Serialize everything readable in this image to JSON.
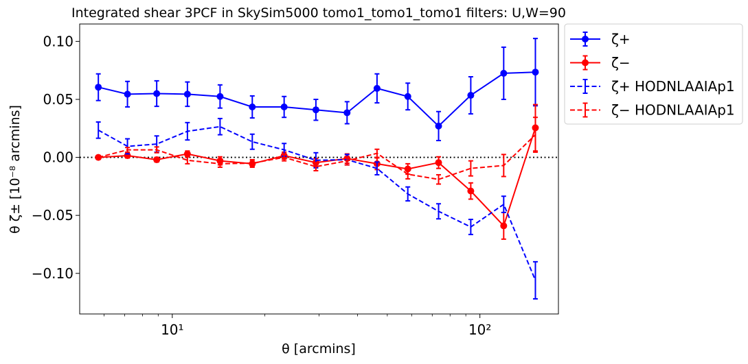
{
  "chart_data": {
    "type": "line",
    "title": "Integrated shear 3PCF in SkySim5000 tomo1_tomo1_tomo1 filters: U,W=90",
    "xlabel": "θ [arcmins]",
    "ylabel": "θ ζ± [10⁻⁸ arcmins]",
    "xscale": "log",
    "xlim": [
      5.0,
      180.0
    ],
    "ylim": [
      -0.135,
      0.115
    ],
    "xticks": [
      {
        "value": 10,
        "label": "10¹"
      },
      {
        "value": 100,
        "label": "10²"
      }
    ],
    "yticks": [
      {
        "value": 0.1,
        "label": "0.10"
      },
      {
        "value": 0.05,
        "label": "0.05"
      },
      {
        "value": 0.0,
        "label": "0.00"
      },
      {
        "value": -0.05,
        "label": "−0.05"
      },
      {
        "value": -0.1,
        "label": "−0.10"
      }
    ],
    "zero_line": true,
    "grid": false,
    "legend_position": "outside right, top",
    "x": [
      5.75,
      7.15,
      8.9,
      11.2,
      14.3,
      18.2,
      23.1,
      29.3,
      37.0,
      46.3,
      58.3,
      73.4,
      93.4,
      119.5,
      151.5
    ],
    "series": [
      {
        "name": "ζ+",
        "color": "#0000ff",
        "style": "solid",
        "marker": true,
        "values": [
          0.0605,
          0.0545,
          0.055,
          0.0545,
          0.0525,
          0.0435,
          0.0435,
          0.041,
          0.0385,
          0.0595,
          0.0525,
          0.027,
          0.0535,
          0.0725,
          0.0735
        ],
        "errors": [
          0.0115,
          0.011,
          0.011,
          0.0105,
          0.01,
          0.0095,
          0.009,
          0.009,
          0.0095,
          0.0125,
          0.0115,
          0.0125,
          0.016,
          0.0225,
          0.029
        ]
      },
      {
        "name": "ζ−",
        "color": "#ff0000",
        "style": "solid",
        "marker": true,
        "values": [
          0.0,
          0.0015,
          -0.002,
          0.003,
          -0.003,
          -0.0055,
          0.0015,
          -0.0045,
          -0.001,
          -0.0055,
          -0.01,
          -0.0045,
          -0.029,
          -0.059,
          0.0255
        ],
        "errors": [
          0.0015,
          0.002,
          0.002,
          0.0025,
          0.0035,
          0.003,
          0.003,
          0.0035,
          0.004,
          0.005,
          0.0045,
          0.005,
          0.007,
          0.0115,
          0.02
        ]
      },
      {
        "name": "ζ+ HODNLAAIAp1",
        "color": "#0000ff",
        "style": "dashed",
        "marker": false,
        "values": [
          0.0235,
          0.0095,
          0.0115,
          0.0225,
          0.0265,
          0.0135,
          0.0065,
          -0.0025,
          -0.002,
          -0.0095,
          -0.0315,
          -0.0465,
          -0.06,
          -0.0405,
          -0.106
        ],
        "errors": [
          0.007,
          0.0065,
          0.007,
          0.0075,
          0.007,
          0.0065,
          0.0055,
          0.0065,
          0.0045,
          0.0055,
          0.006,
          0.0065,
          0.0065,
          0.007,
          0.016
        ]
      },
      {
        "name": "ζ− HODNLAAIAp1",
        "color": "#ff0000",
        "style": "dashed",
        "marker": false,
        "values": [
          0.0,
          0.0065,
          0.0065,
          -0.0025,
          -0.0055,
          -0.005,
          0.0,
          -0.008,
          -0.003,
          0.0035,
          -0.0145,
          -0.019,
          -0.0095,
          -0.007,
          0.0195
        ],
        "errors": [
          0.001,
          0.002,
          0.0025,
          0.003,
          0.003,
          0.003,
          0.003,
          0.0035,
          0.0035,
          0.0035,
          0.004,
          0.004,
          0.0065,
          0.0095,
          0.015
        ]
      }
    ]
  }
}
